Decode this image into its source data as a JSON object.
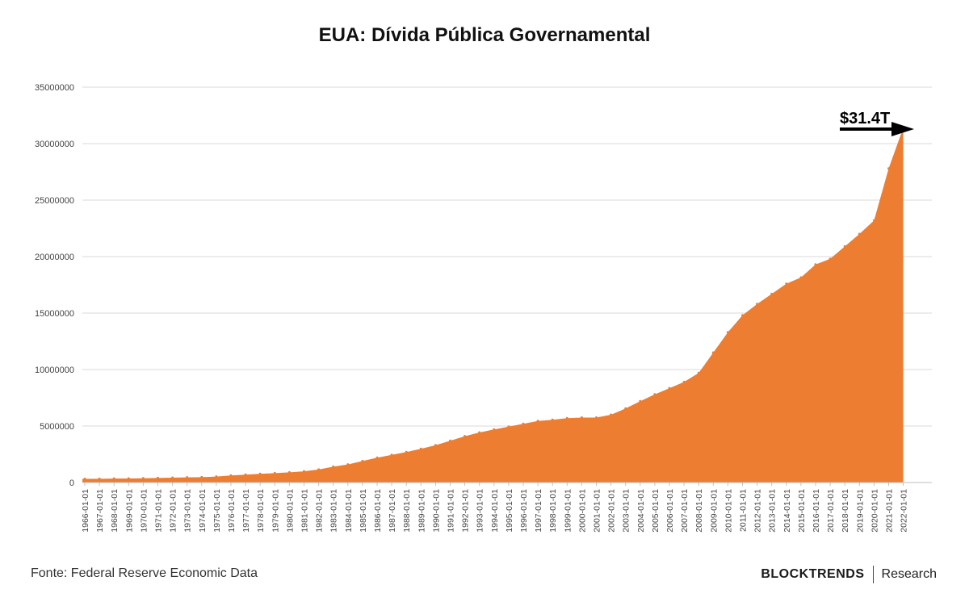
{
  "title": "EUA: Dívida Pública Governamental",
  "footer": {
    "source": "Fonte: Federal Reserve Economic Data",
    "brand": "BLOCKTRENDS",
    "brand_sub": "Research"
  },
  "chart_data": {
    "type": "area",
    "title": "EUA: Dívida Pública Governamental",
    "xlabel": "",
    "ylabel": "",
    "ylim": [
      0,
      35000000
    ],
    "yticks": [
      0,
      5000000,
      10000000,
      15000000,
      20000000,
      25000000,
      30000000,
      35000000
    ],
    "grid": true,
    "color": "#ED7D31",
    "annotation": {
      "text": "$31.4T",
      "arrow": "right"
    },
    "categories": [
      "1966-01-01",
      "1967-01-01",
      "1968-01-01",
      "1969-01-01",
      "1970-01-01",
      "1971-01-01",
      "1972-01-01",
      "1973-01-01",
      "1974-01-01",
      "1975-01-01",
      "1976-01-01",
      "1977-01-01",
      "1978-01-01",
      "1979-01-01",
      "1980-01-01",
      "1981-01-01",
      "1982-01-01",
      "1983-01-01",
      "1984-01-01",
      "1985-01-01",
      "1986-01-01",
      "1987-01-01",
      "1988-01-01",
      "1989-01-01",
      "1990-01-01",
      "1991-01-01",
      "1992-01-01",
      "1993-01-01",
      "1994-01-01",
      "1995-01-01",
      "1996-01-01",
      "1997-01-01",
      "1998-01-01",
      "1999-01-01",
      "2000-01-01",
      "2001-01-01",
      "2002-01-01",
      "2003-01-01",
      "2004-01-01",
      "2005-01-01",
      "2006-01-01",
      "2007-01-01",
      "2008-01-01",
      "2009-01-01",
      "2010-01-01",
      "2011-01-01",
      "2012-01-01",
      "2013-01-01",
      "2014-01-01",
      "2015-01-01",
      "2016-01-01",
      "2017-01-01",
      "2018-01-01",
      "2019-01-01",
      "2020-01-01",
      "2021-01-01",
      "2022-01-01"
    ],
    "values": [
      320000,
      330000,
      350000,
      355000,
      370000,
      400000,
      430000,
      455000,
      470000,
      530000,
      620000,
      700000,
      770000,
      830000,
      900000,
      990000,
      1150000,
      1400000,
      1600000,
      1900000,
      2200000,
      2450000,
      2700000,
      2980000,
      3300000,
      3700000,
      4100000,
      4430000,
      4700000,
      4950000,
      5200000,
      5450000,
      5550000,
      5700000,
      5750000,
      5750000,
      6000000,
      6550000,
      7200000,
      7800000,
      8350000,
      8900000,
      9700000,
      11500000,
      13300000,
      14800000,
      15800000,
      16700000,
      17600000,
      18150000,
      19300000,
      19800000,
      20900000,
      22000000,
      23200000,
      27800000,
      31400000
    ]
  }
}
